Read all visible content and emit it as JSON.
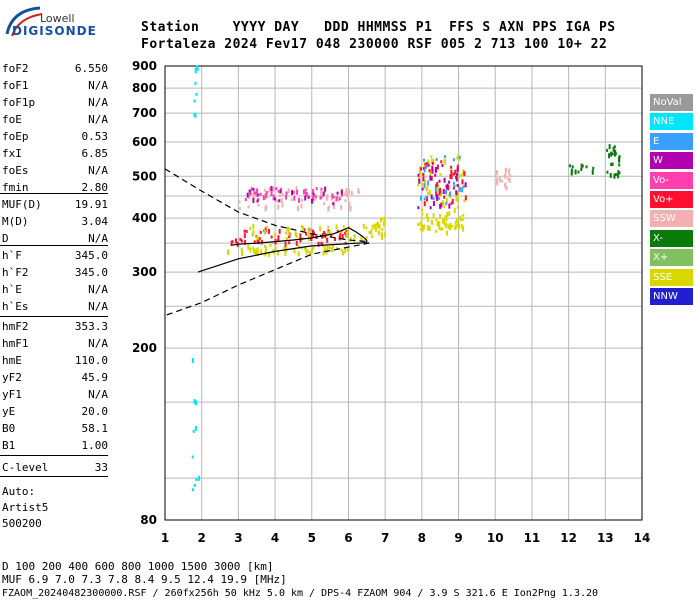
{
  "logo": {
    "top": "Lowell",
    "bottom": "DIGISONDE"
  },
  "header": {
    "line1": "Station    YYYY DAY   DDD HHMMSS P1  FFS S AXN PPS IGA PS",
    "line2": "Fortaleza 2024 Fev17 048 230000 RSF 005 2 713 100 10+ 22"
  },
  "params": [
    {
      "key": "foF2",
      "value": "6.550"
    },
    {
      "key": "foF1",
      "value": "N/A"
    },
    {
      "key": "foF1p",
      "value": "N/A"
    },
    {
      "key": "foE",
      "value": "N/A"
    },
    {
      "key": "foEp",
      "value": "0.53"
    },
    {
      "key": "fxI",
      "value": "6.85"
    },
    {
      "key": "foEs",
      "value": "N/A"
    },
    {
      "key": "fmin",
      "value": "2.80"
    },
    {
      "key": "MUF(D)",
      "value": "19.91"
    },
    {
      "key": "M(D)",
      "value": "3.04"
    },
    {
      "key": "D",
      "value": "N/A"
    },
    {
      "key": "h`F",
      "value": "345.0"
    },
    {
      "key": "h`F2",
      "value": "345.0"
    },
    {
      "key": "h`E",
      "value": "N/A"
    },
    {
      "key": "h`Es",
      "value": "N/A"
    },
    {
      "key": "hmF2",
      "value": "353.3"
    },
    {
      "key": "hmF1",
      "value": "N/A"
    },
    {
      "key": "hmE",
      "value": "110.0"
    },
    {
      "key": "yF2",
      "value": "45.9"
    },
    {
      "key": "yF1",
      "value": "N/A"
    },
    {
      "key": "yE",
      "value": "20.0"
    },
    {
      "key": "B0",
      "value": "58.1"
    },
    {
      "key": "B1",
      "value": "1.00"
    },
    {
      "key": "C-level",
      "value": "33"
    }
  ],
  "auto": {
    "line1": "Auto:",
    "line2": "Artist5",
    "line3": "500200"
  },
  "legend": [
    {
      "label": "NoVal",
      "color": "#9a9a9a"
    },
    {
      "label": "NNE",
      "color": "#00e5ff"
    },
    {
      "label": "E",
      "color": "#3aa0ff"
    },
    {
      "label": "W",
      "color": "#b000b0"
    },
    {
      "label": "Vo-",
      "color": "#ff3fae"
    },
    {
      "label": "Vo+",
      "color": "#ff1030"
    },
    {
      "label": "SSW",
      "color": "#f4b0b0"
    },
    {
      "label": "X-",
      "color": "#0a7a0a"
    },
    {
      "label": "X+",
      "color": "#80c060"
    },
    {
      "label": "SSE",
      "color": "#d8d800"
    },
    {
      "label": "NNW",
      "color": "#2020d0"
    }
  ],
  "chart_data": {
    "type": "scatter",
    "xlim": [
      1,
      14
    ],
    "ylim": [
      80,
      900
    ],
    "x_ticks": [
      1,
      2,
      3,
      4,
      5,
      6,
      7,
      8,
      9,
      10,
      11,
      12,
      13,
      14
    ],
    "y_ticks": [
      80,
      200,
      300,
      400,
      500,
      600,
      700,
      800,
      900
    ],
    "y_scale": "log",
    "grid": true,
    "legend_position": "right",
    "profile_solid": [
      [
        1.9,
        300
      ],
      [
        3.0,
        322
      ],
      [
        4.0,
        335
      ],
      [
        5.0,
        345
      ],
      [
        6.0,
        349
      ],
      [
        6.5,
        351
      ],
      [
        6.5,
        355
      ],
      [
        6.4,
        362
      ],
      [
        6.2,
        372
      ],
      [
        6.0,
        380
      ],
      [
        5.6,
        368
      ],
      [
        5.0,
        360
      ],
      [
        4.5,
        356
      ],
      [
        4.0,
        353
      ],
      [
        3.5,
        350
      ],
      [
        3.0,
        348
      ],
      [
        2.8,
        346
      ]
    ],
    "profile_dashed": [
      [
        1.0,
        520
      ],
      [
        2.0,
        462
      ],
      [
        3.0,
        413
      ],
      [
        4.0,
        385
      ],
      [
        5.0,
        368
      ],
      [
        6.0,
        356
      ],
      [
        6.55,
        353
      ],
      [
        6.55,
        350
      ],
      [
        5.0,
        330
      ],
      [
        4.0,
        304
      ],
      [
        3.0,
        280
      ],
      [
        2.0,
        255
      ],
      [
        1.0,
        238
      ]
    ],
    "echo_clusters": [
      {
        "x": [
          2.7,
          6.0
        ],
        "y": [
          330,
          345
        ],
        "class": "SSE",
        "n": 60
      },
      {
        "x": [
          2.8,
          6.0
        ],
        "y": [
          348,
          378
        ],
        "class": "Vo+",
        "n": 70
      },
      {
        "x": [
          3.3,
          6.7
        ],
        "y": [
          355,
          385
        ],
        "class": "SSE",
        "n": 50
      },
      {
        "x": [
          3.0,
          6.3
        ],
        "y": [
          420,
          470
        ],
        "class": "SSW",
        "n": 60
      },
      {
        "x": [
          3.2,
          6.0
        ],
        "y": [
          440,
          470
        ],
        "class": "Vo-",
        "n": 40
      },
      {
        "x": [
          3.2,
          6.0
        ],
        "y": [
          430,
          470
        ],
        "class": "W",
        "n": 20
      },
      {
        "x": [
          6.6,
          7.0
        ],
        "y": [
          360,
          400
        ],
        "class": "SSE",
        "n": 20
      },
      {
        "x": [
          7.9,
          9.2
        ],
        "y": [
          370,
          400
        ],
        "class": "SSE",
        "n": 50
      },
      {
        "x": [
          7.9,
          9.2
        ],
        "y": [
          400,
          560
        ],
        "class": "SSE",
        "n": 60
      },
      {
        "x": [
          7.9,
          9.2
        ],
        "y": [
          430,
          540
        ],
        "class": "Vo+",
        "n": 40
      },
      {
        "x": [
          7.9,
          9.2
        ],
        "y": [
          420,
          530
        ],
        "class": "W",
        "n": 30
      },
      {
        "x": [
          7.9,
          9.2
        ],
        "y": [
          430,
          560
        ],
        "class": "E",
        "n": 25
      },
      {
        "x": [
          10.0,
          10.4
        ],
        "y": [
          470,
          520
        ],
        "class": "SSW",
        "n": 20
      },
      {
        "x": [
          12.0,
          12.8
        ],
        "y": [
          510,
          530
        ],
        "class": "X-",
        "n": 12
      },
      {
        "x": [
          13.0,
          13.4
        ],
        "y": [
          500,
          590
        ],
        "class": "X-",
        "n": 25
      },
      {
        "x": [
          1.75,
          1.95
        ],
        "y": [
          82,
          190
        ],
        "class": "NNE",
        "n": 10
      },
      {
        "x": [
          1.8,
          1.9
        ],
        "y": [
          620,
          900
        ],
        "class": "NNE",
        "n": 8
      }
    ]
  },
  "footer": {
    "row1": "D     100  200  400  600  800 1000 1500 3000 [km]",
    "row2": "MUF   6.9  7.0  7.3  7.8  8.4  9.5 12.4 19.9 [MHz]",
    "file": "FZAOM_20240482300000.RSF / 260fx256h 50 kHz 5.0 km / DPS-4 FZAOM 904 / 3.9 S 321.6 E   Ion2Png 1.3.20"
  }
}
